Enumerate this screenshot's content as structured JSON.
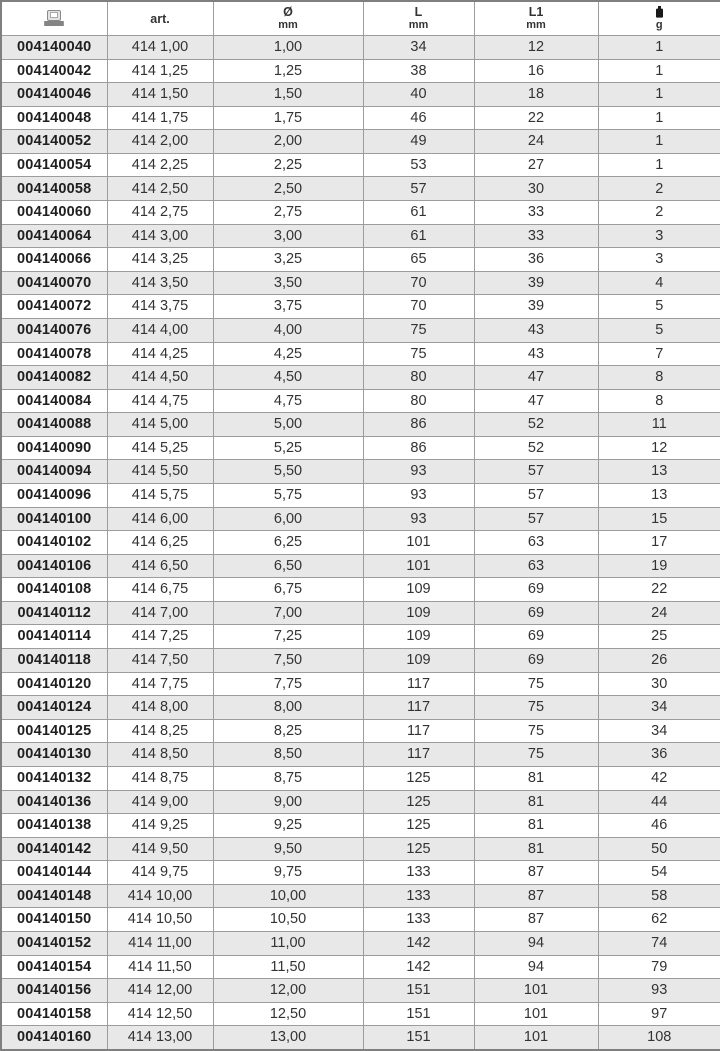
{
  "table": {
    "column_names": [
      "cell-ean",
      "cell-art",
      "cell-diameter",
      "cell-length",
      "cell-length1",
      "cell-weight"
    ],
    "headers": {
      "ean_icon": "barcode-icon",
      "art_label": "art.",
      "diameter_label": "Ø",
      "diameter_unit": "mm",
      "length_label": "L",
      "length_unit": "mm",
      "length1_label": "L1",
      "length1_unit": "mm",
      "weight_icon": "weight-icon",
      "weight_unit": "g"
    },
    "rows": [
      [
        "004140040",
        "414 1,00",
        "1,00",
        "34",
        "12",
        "1"
      ],
      [
        "004140042",
        "414 1,25",
        "1,25",
        "38",
        "16",
        "1"
      ],
      [
        "004140046",
        "414 1,50",
        "1,50",
        "40",
        "18",
        "1"
      ],
      [
        "004140048",
        "414 1,75",
        "1,75",
        "46",
        "22",
        "1"
      ],
      [
        "004140052",
        "414 2,00",
        "2,00",
        "49",
        "24",
        "1"
      ],
      [
        "004140054",
        "414 2,25",
        "2,25",
        "53",
        "27",
        "1"
      ],
      [
        "004140058",
        "414 2,50",
        "2,50",
        "57",
        "30",
        "2"
      ],
      [
        "004140060",
        "414 2,75",
        "2,75",
        "61",
        "33",
        "2"
      ],
      [
        "004140064",
        "414 3,00",
        "3,00",
        "61",
        "33",
        "3"
      ],
      [
        "004140066",
        "414 3,25",
        "3,25",
        "65",
        "36",
        "3"
      ],
      [
        "004140070",
        "414 3,50",
        "3,50",
        "70",
        "39",
        "4"
      ],
      [
        "004140072",
        "414 3,75",
        "3,75",
        "70",
        "39",
        "5"
      ],
      [
        "004140076",
        "414 4,00",
        "4,00",
        "75",
        "43",
        "5"
      ],
      [
        "004140078",
        "414 4,25",
        "4,25",
        "75",
        "43",
        "7"
      ],
      [
        "004140082",
        "414 4,50",
        "4,50",
        "80",
        "47",
        "8"
      ],
      [
        "004140084",
        "414 4,75",
        "4,75",
        "80",
        "47",
        "8"
      ],
      [
        "004140088",
        "414 5,00",
        "5,00",
        "86",
        "52",
        "11"
      ],
      [
        "004140090",
        "414 5,25",
        "5,25",
        "86",
        "52",
        "12"
      ],
      [
        "004140094",
        "414 5,50",
        "5,50",
        "93",
        "57",
        "13"
      ],
      [
        "004140096",
        "414 5,75",
        "5,75",
        "93",
        "57",
        "13"
      ],
      [
        "004140100",
        "414 6,00",
        "6,00",
        "93",
        "57",
        "15"
      ],
      [
        "004140102",
        "414 6,25",
        "6,25",
        "101",
        "63",
        "17"
      ],
      [
        "004140106",
        "414 6,50",
        "6,50",
        "101",
        "63",
        "19"
      ],
      [
        "004140108",
        "414 6,75",
        "6,75",
        "109",
        "69",
        "22"
      ],
      [
        "004140112",
        "414 7,00",
        "7,00",
        "109",
        "69",
        "24"
      ],
      [
        "004140114",
        "414 7,25",
        "7,25",
        "109",
        "69",
        "25"
      ],
      [
        "004140118",
        "414 7,50",
        "7,50",
        "109",
        "69",
        "26"
      ],
      [
        "004140120",
        "414 7,75",
        "7,75",
        "117",
        "75",
        "30"
      ],
      [
        "004140124",
        "414 8,00",
        "8,00",
        "117",
        "75",
        "34"
      ],
      [
        "004140125",
        "414 8,25",
        "8,25",
        "117",
        "75",
        "34"
      ],
      [
        "004140130",
        "414 8,50",
        "8,50",
        "117",
        "75",
        "36"
      ],
      [
        "004140132",
        "414 8,75",
        "8,75",
        "125",
        "81",
        "42"
      ],
      [
        "004140136",
        "414 9,00",
        "9,00",
        "125",
        "81",
        "44"
      ],
      [
        "004140138",
        "414 9,25",
        "9,25",
        "125",
        "81",
        "46"
      ],
      [
        "004140142",
        "414 9,50",
        "9,50",
        "125",
        "81",
        "50"
      ],
      [
        "004140144",
        "414 9,75",
        "9,75",
        "133",
        "87",
        "54"
      ],
      [
        "004140148",
        "414 10,00",
        "10,00",
        "133",
        "87",
        "58"
      ],
      [
        "004140150",
        "414 10,50",
        "10,50",
        "133",
        "87",
        "62"
      ],
      [
        "004140152",
        "414 11,00",
        "11,00",
        "142",
        "94",
        "74"
      ],
      [
        "004140154",
        "414 11,50",
        "11,50",
        "142",
        "94",
        "79"
      ],
      [
        "004140156",
        "414 12,00",
        "12,00",
        "151",
        "101",
        "93"
      ],
      [
        "004140158",
        "414 12,50",
        "12,50",
        "151",
        "101",
        "97"
      ],
      [
        "004140160",
        "414 13,00",
        "13,00",
        "151",
        "101",
        "108"
      ]
    ]
  },
  "colors": {
    "stripe": "#e8e8e8",
    "grid_border": "#9c9c9c",
    "outer_border": "#7f7f7f",
    "text": "#333333",
    "ean_text": "#1f1f1f"
  }
}
